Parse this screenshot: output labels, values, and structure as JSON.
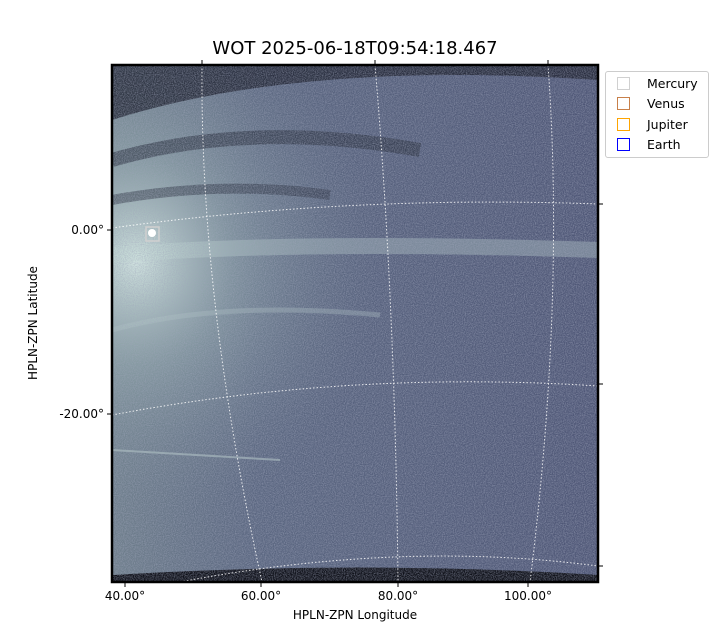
{
  "chart_data": {
    "type": "image",
    "title": "WOT 2025-06-18T09:54:18.467",
    "xlabel": "HPLN-ZPN Longitude",
    "ylabel": "HPLN-ZPN Latitude",
    "x_ticks": [
      "40.00°",
      "60.00°",
      "80.00°",
      "100.00°"
    ],
    "y_ticks": [
      "0.00°",
      "-20.00°"
    ],
    "colormap": "bone",
    "grid": true,
    "legend_position": "outside-right-top",
    "legend": [
      {
        "name": "Mercury",
        "color": "#d0d0d0"
      },
      {
        "name": "Venus",
        "color": "#c8804a"
      },
      {
        "name": "Jupiter",
        "color": "#ffa500"
      },
      {
        "name": "Earth",
        "color": "#0000ff"
      }
    ],
    "markers": [
      {
        "name": "Mercury",
        "lon": 44,
        "lat": -0.5
      }
    ]
  }
}
